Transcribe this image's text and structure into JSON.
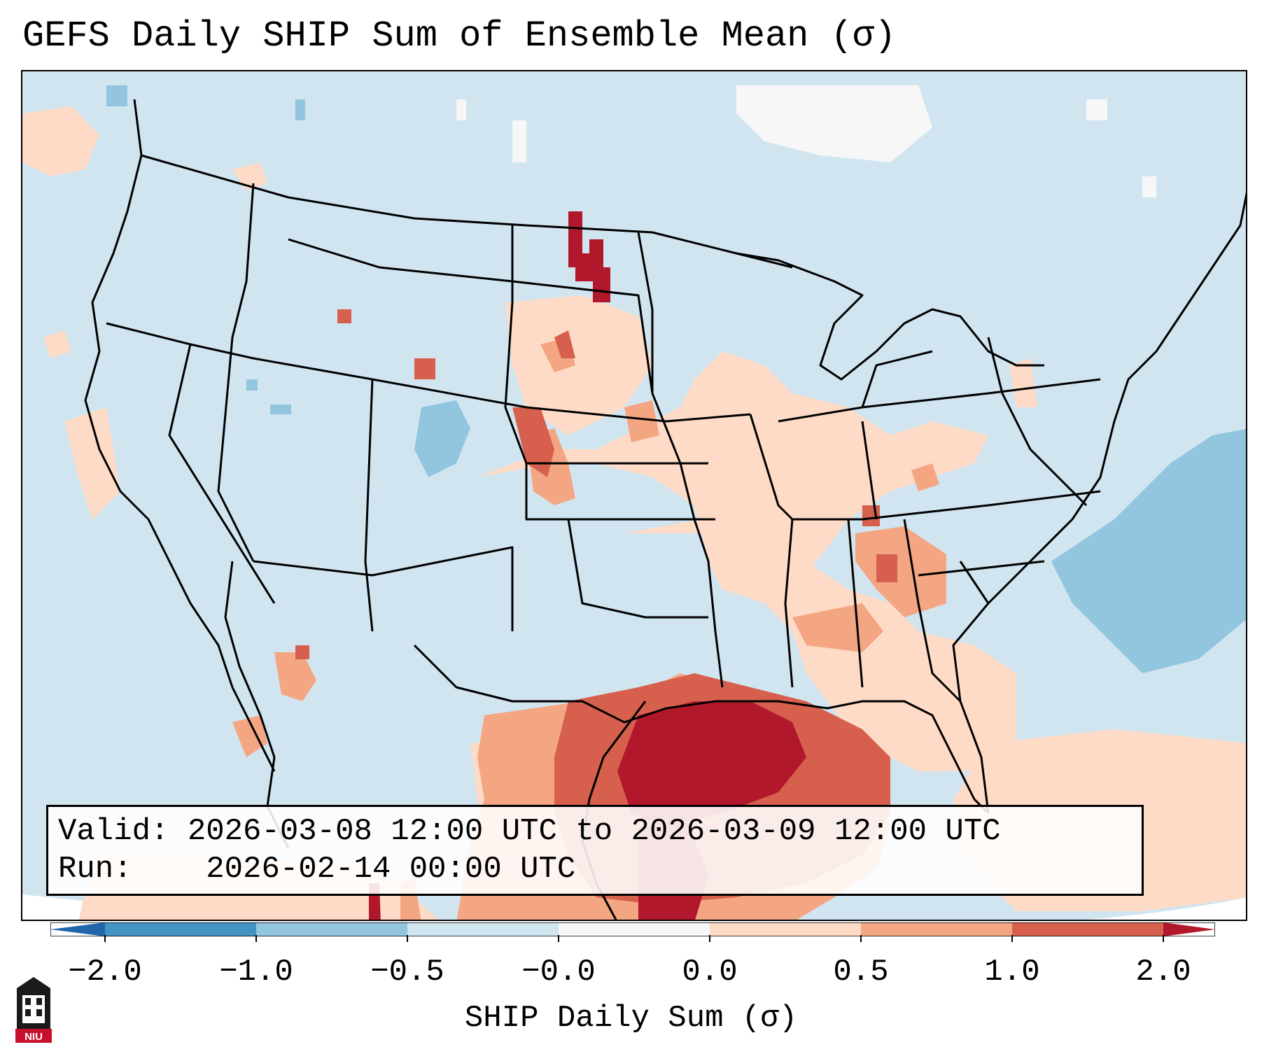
{
  "title": "GEFS Daily SHIP Sum of Ensemble Mean (σ)",
  "info": {
    "valid_label": "Valid:",
    "valid_value": "2026-03-08 12:00 UTC to 2026-03-09 12:00 UTC",
    "run_label": "Run:",
    "run_value": "2026-02-14 00:00 UTC"
  },
  "colorbar": {
    "label": "SHIP Daily Sum (σ)",
    "ticks": [
      "−2.0",
      "−1.0",
      "−0.5",
      "−0.0",
      "0.0",
      "0.5",
      "1.0",
      "2.0"
    ],
    "colors": [
      "#2166ac",
      "#4393c3",
      "#92c5de",
      "#d1e5f0",
      "#f7f7f7",
      "#fddbc7",
      "#f4a582",
      "#d6604d",
      "#b2182b"
    ]
  },
  "map": {
    "field_name": "SHIP anomaly (σ)",
    "base_color": "#d1e5f0"
  },
  "logo": {
    "text": "NIU",
    "icon": "niu-logo-icon"
  }
}
